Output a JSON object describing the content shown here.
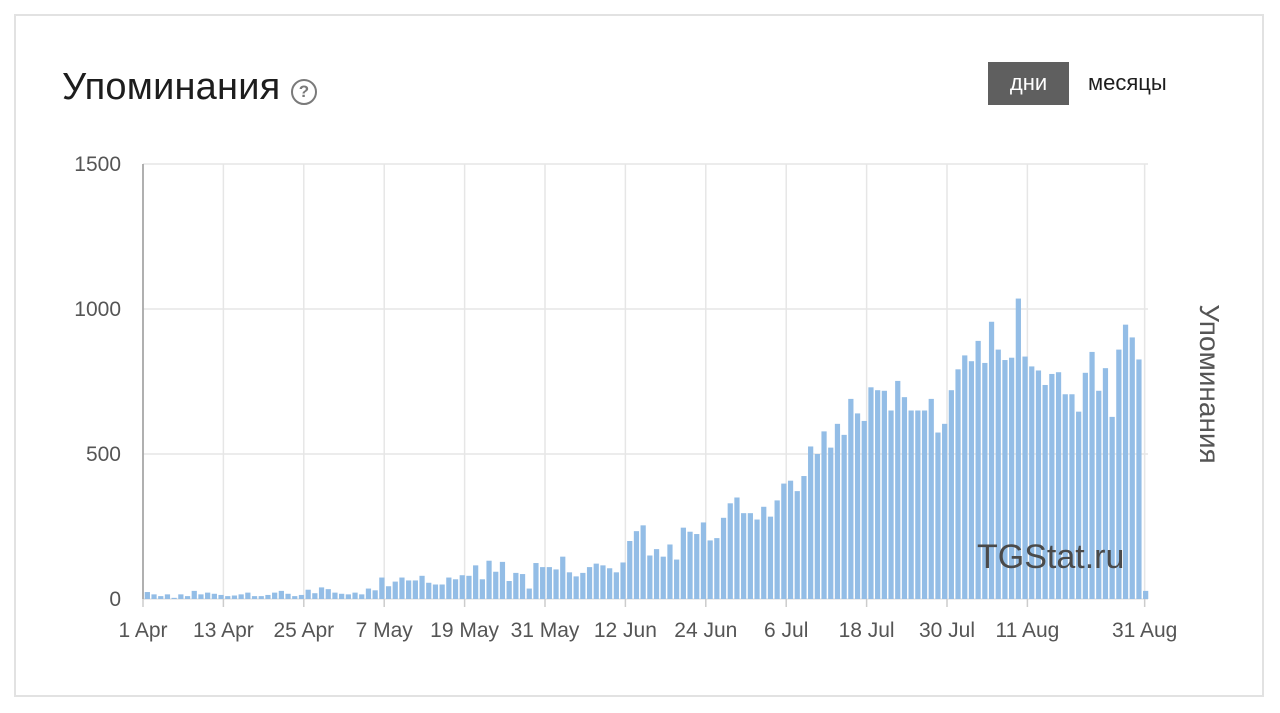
{
  "header": {
    "title": "Упоминания",
    "help_icon": "question-circle-icon",
    "toggle_days": "дни",
    "toggle_months": "месяцы"
  },
  "watermark": "TGStat.ru",
  "colors": {
    "bar": "#93bde6",
    "grid": "#e6e6e6",
    "axis_text": "#555555",
    "active_toggle": "#5f5f5f"
  },
  "chart_data": {
    "type": "bar",
    "title": "",
    "ylabel": "Упоминания",
    "ylim": [
      0,
      1500
    ],
    "yticks": [
      0,
      500,
      1000,
      1500
    ],
    "xticks": [
      "1 Apr",
      "13 Apr",
      "25 Apr",
      "7 May",
      "19 May",
      "31 May",
      "12 Jun",
      "24 Jun",
      "6 Jul",
      "18 Jul",
      "30 Jul",
      "11 Aug",
      "31 Aug"
    ],
    "x_start": "1 Apr",
    "x_end": "31 Aug",
    "grid": true,
    "legend": "none",
    "values": [
      24,
      16,
      10,
      16,
      4,
      16,
      10,
      28,
      16,
      22,
      18,
      14,
      10,
      12,
      16,
      22,
      10,
      10,
      14,
      22,
      28,
      18,
      10,
      14,
      32,
      20,
      40,
      34,
      22,
      18,
      16,
      22,
      16,
      36,
      30,
      74,
      44,
      60,
      74,
      64,
      64,
      80,
      56,
      50,
      50,
      74,
      68,
      82,
      80,
      116,
      68,
      132,
      94,
      128,
      62,
      90,
      86,
      36,
      124,
      110,
      110,
      102,
      146,
      92,
      78,
      90,
      110,
      122,
      116,
      106,
      92,
      126,
      200,
      234,
      254,
      150,
      172,
      146,
      188,
      136,
      246,
      232,
      224,
      264,
      202,
      210,
      280,
      330,
      350,
      296,
      296,
      274,
      318,
      284,
      340,
      398,
      408,
      372,
      424,
      526,
      500,
      578,
      522,
      604,
      566,
      690,
      640,
      614,
      730,
      720,
      718,
      650,
      752,
      696,
      650,
      650,
      650,
      690,
      574,
      604,
      720,
      792,
      840,
      820,
      890,
      814,
      956,
      860,
      824,
      832,
      1036,
      836,
      802,
      788,
      738,
      776,
      782,
      706,
      706,
      646,
      780,
      852,
      718,
      796,
      628,
      860,
      946,
      902,
      826,
      28
    ]
  }
}
